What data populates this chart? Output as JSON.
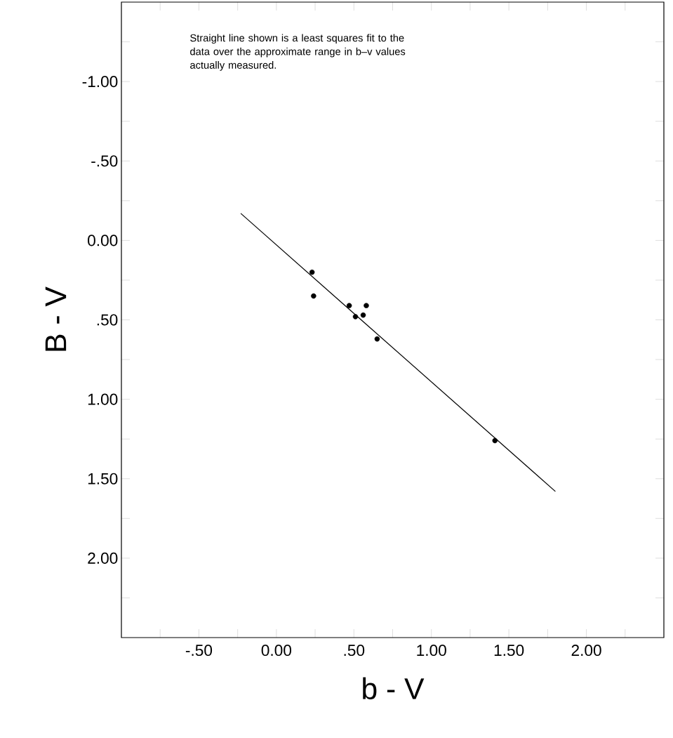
{
  "chart_data": {
    "type": "scatter",
    "xlabel": "b - V",
    "ylabel": "B - V",
    "annotations": [
      "Straight line shown is a least squares fit to the data over the approximate range in b–v values actually measured."
    ],
    "series": [
      {
        "color": "#000000",
        "marker": "circle",
        "x": [
          0.23,
          0.24,
          0.47,
          0.58,
          0.51,
          0.56,
          0.65,
          1.41
        ],
        "values": [
          0.2,
          0.35,
          0.41,
          0.41,
          0.48,
          0.47,
          0.62,
          1.26
        ]
      },
      {
        "type": "line",
        "marker": "none",
        "color": "#000000",
        "x": [
          -0.23,
          1.8
        ],
        "values": [
          -0.17,
          1.58
        ]
      }
    ],
    "xlim": [
      -1.0,
      2.5
    ],
    "ylim": [
      2.5,
      -1.5
    ],
    "xticks": [
      {
        "value": -0.75,
        "label": null
      },
      {
        "value": -0.5,
        "label": "-.50"
      },
      {
        "value": -0.25,
        "label": null
      },
      {
        "value": 0,
        "label": "0.00"
      },
      {
        "value": 0.25,
        "label": null
      },
      {
        "value": 0.5,
        "label": ".50"
      },
      {
        "value": 0.75,
        "label": null
      },
      {
        "value": 1,
        "label": "1.00"
      },
      {
        "value": 1.25,
        "label": null
      },
      {
        "value": 1.5,
        "label": "1.50"
      },
      {
        "value": 1.75,
        "label": null
      },
      {
        "value": 2,
        "label": "2.00"
      },
      {
        "value": 2.25,
        "label": null
      }
    ],
    "yticks": [
      {
        "value": -1.25,
        "label": null
      },
      {
        "value": -1,
        "label": "-1.00"
      },
      {
        "value": -0.75,
        "label": null
      },
      {
        "value": -0.5,
        "label": "-.50"
      },
      {
        "value": -0.25,
        "label": null
      },
      {
        "value": 0,
        "label": "0.00"
      },
      {
        "value": 0.25,
        "label": null
      },
      {
        "value": 0.5,
        "label": ".50"
      },
      {
        "value": 0.75,
        "label": null
      },
      {
        "value": 1,
        "label": "1.00"
      },
      {
        "value": 1.25,
        "label": null
      },
      {
        "value": 1.5,
        "label": "1.50"
      },
      {
        "value": 1.75,
        "label": null
      },
      {
        "value": 2,
        "label": "2.00"
      },
      {
        "value": 2.25,
        "label": null
      }
    ]
  }
}
